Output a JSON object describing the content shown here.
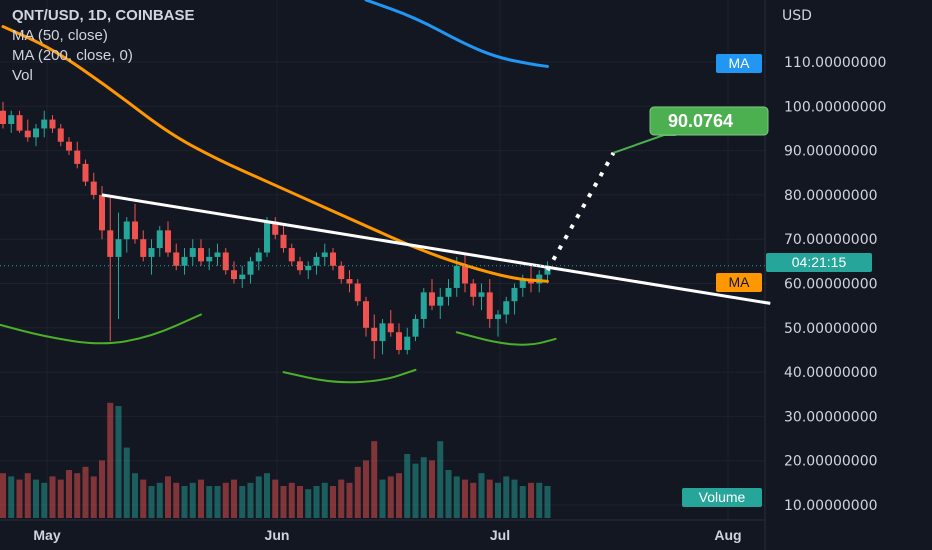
{
  "legend": {
    "title": "QNT/USD, 1D, COINBASE",
    "ma50": "MA (50, close)",
    "ma200": "MA (200, close, 0)",
    "vol": "Vol"
  },
  "axis": {
    "currency": "USD",
    "y_ticks": [
      "110.00000000",
      "100.00000000",
      "90.00000000",
      "80.00000000",
      "70.00000000",
      "60.00000000",
      "50.00000000",
      "40.00000000",
      "30.00000000",
      "20.00000000",
      "10.00000000"
    ],
    "x_ticks": [
      "May",
      "Jun",
      "Jul",
      "Aug"
    ]
  },
  "badges": {
    "ma_blue": "MA",
    "ma_orange": "MA",
    "countdown": "04:21:15",
    "target": "90.0764",
    "volume": "Volume"
  },
  "colors": {
    "background": "#131722",
    "up": "#26a69a",
    "down": "#ef5350",
    "ma50": "#ff9800",
    "ma200": "#2196f3",
    "trendline": "#ffffff",
    "pattern": "#4caf2a",
    "target": "#4caf50"
  },
  "chart_data": {
    "type": "candlestick",
    "symbol": "QNT/USD",
    "timeframe": "1D",
    "y_range": [
      5,
      121
    ],
    "y_ticks": [
      110,
      100,
      90,
      80,
      70,
      60,
      50,
      40,
      30,
      20,
      10
    ],
    "grid": true,
    "current_price_countdown": "04:21:15",
    "target_price": 90.0764,
    "candles": [
      [
        99,
        101,
        95,
        96
      ],
      [
        96,
        99,
        94,
        98
      ],
      [
        98,
        99,
        94,
        94.5
      ],
      [
        94.5,
        97,
        92,
        93
      ],
      [
        93,
        96,
        91,
        95
      ],
      [
        95,
        99,
        93,
        97
      ],
      [
        97,
        98,
        94,
        95
      ],
      [
        95,
        96,
        91,
        92
      ],
      [
        92,
        93,
        89,
        90
      ],
      [
        90,
        92,
        86,
        87
      ],
      [
        87,
        88,
        82,
        83
      ],
      [
        83,
        85,
        79,
        80
      ],
      [
        80,
        82,
        70,
        72
      ],
      [
        72,
        80,
        47,
        66
      ],
      [
        66,
        76,
        52,
        70
      ],
      [
        70,
        75,
        67,
        74
      ],
      [
        74,
        78,
        69,
        70
      ],
      [
        70,
        72,
        65,
        66
      ],
      [
        66,
        70,
        62,
        68
      ],
      [
        68,
        73,
        66,
        72
      ],
      [
        72,
        74,
        66,
        67
      ],
      [
        67,
        69,
        63,
        64
      ],
      [
        64,
        68,
        62,
        66
      ],
      [
        66,
        70,
        64,
        68
      ],
      [
        68,
        70,
        64,
        65
      ],
      [
        65,
        68,
        63,
        66
      ],
      [
        66,
        69,
        64,
        67
      ],
      [
        67,
        68,
        62,
        63
      ],
      [
        63,
        65,
        60,
        61
      ],
      [
        61,
        64,
        59,
        62
      ],
      [
        62,
        66,
        60,
        65
      ],
      [
        65,
        68,
        63,
        67
      ],
      [
        67,
        75,
        66,
        74
      ],
      [
        74,
        75,
        70,
        71
      ],
      [
        71,
        73,
        67,
        68
      ],
      [
        68,
        69,
        64,
        65
      ],
      [
        65,
        66,
        62,
        63
      ],
      [
        63,
        65,
        61,
        64
      ],
      [
        64,
        67,
        62,
        66
      ],
      [
        66,
        69,
        64,
        67
      ],
      [
        67,
        68,
        63,
        64
      ],
      [
        64,
        65,
        60,
        61
      ],
      [
        61,
        63,
        58,
        60
      ],
      [
        60,
        61,
        55,
        56
      ],
      [
        56,
        57,
        48,
        50
      ],
      [
        50,
        53,
        43,
        47
      ],
      [
        47,
        52,
        44,
        51
      ],
      [
        51,
        54,
        48,
        49
      ],
      [
        49,
        51,
        44,
        45
      ],
      [
        45,
        50,
        44,
        48
      ],
      [
        48,
        53,
        47,
        52
      ],
      [
        52,
        59,
        50,
        58
      ],
      [
        58,
        61,
        54,
        55
      ],
      [
        55,
        59,
        52,
        57
      ],
      [
        57,
        61,
        55,
        59
      ],
      [
        59,
        66,
        57,
        64
      ],
      [
        64,
        67,
        58,
        60
      ],
      [
        60,
        61,
        55,
        57
      ],
      [
        57,
        60,
        54,
        58
      ],
      [
        58,
        61,
        50,
        52
      ],
      [
        52,
        54,
        48,
        53
      ],
      [
        53,
        57,
        51,
        56
      ],
      [
        56,
        60,
        53,
        59
      ],
      [
        59,
        62,
        57,
        61
      ],
      [
        61,
        64,
        58,
        60
      ],
      [
        60,
        63,
        58,
        62
      ],
      [
        62,
        65,
        60,
        64
      ]
    ],
    "volume": [
      14,
      13,
      12,
      14,
      12,
      11,
      13,
      12,
      15,
      14,
      16,
      13,
      18,
      36,
      35,
      22,
      14,
      12,
      10,
      11,
      13,
      11,
      10,
      11,
      12,
      10,
      10,
      11,
      12,
      10,
      11,
      13,
      14,
      12,
      10,
      11,
      10,
      9,
      10,
      11,
      10,
      12,
      11,
      16,
      18,
      24,
      12,
      13,
      14,
      20,
      17,
      19,
      18,
      24,
      15,
      13,
      12,
      11,
      14,
      12,
      11,
      13,
      12,
      10,
      11,
      11,
      10
    ],
    "volume_up": [
      false,
      true,
      false,
      false,
      true,
      true,
      false,
      false,
      false,
      false,
      false,
      false,
      false,
      false,
      true,
      true,
      true,
      false,
      true,
      true,
      false,
      false,
      true,
      true,
      false,
      true,
      true,
      false,
      false,
      true,
      true,
      true,
      true,
      false,
      false,
      false,
      false,
      true,
      true,
      true,
      false,
      false,
      false,
      false,
      false,
      false,
      true,
      false,
      false,
      true,
      true,
      true,
      false,
      true,
      true,
      true,
      false,
      false,
      true,
      false,
      true,
      true,
      true,
      true,
      false,
      true,
      true
    ],
    "ma50": [
      [
        0,
        118
      ],
      [
        6,
        113
      ],
      [
        13,
        104
      ],
      [
        20,
        94
      ],
      [
        26,
        88
      ],
      [
        32,
        83
      ],
      [
        38,
        78
      ],
      [
        44,
        73
      ],
      [
        50,
        68
      ],
      [
        56,
        64
      ],
      [
        62,
        61
      ],
      [
        66,
        60.5
      ]
    ],
    "ma200": [
      [
        44,
        124
      ],
      [
        50,
        120
      ],
      [
        56,
        114
      ],
      [
        60,
        111
      ],
      [
        64,
        109.5
      ],
      [
        66,
        109
      ]
    ],
    "trendline": [
      [
        12,
        80
      ],
      [
        93,
        55.5
      ]
    ],
    "projection": [
      [
        66,
        63
      ],
      [
        74,
        89.5
      ]
    ],
    "inverse_head_shoulders": [
      [
        [
          -1,
          51
        ],
        [
          5,
          48
        ],
        [
          12,
          46
        ],
        [
          18,
          48
        ],
        [
          24,
          53
        ]
      ],
      [
        [
          34,
          40
        ],
        [
          40,
          37.5
        ],
        [
          46,
          38
        ],
        [
          50,
          40.5
        ]
      ],
      [
        [
          55,
          49
        ],
        [
          60,
          46.5
        ],
        [
          64,
          46
        ],
        [
          67,
          47.5
        ]
      ]
    ]
  }
}
